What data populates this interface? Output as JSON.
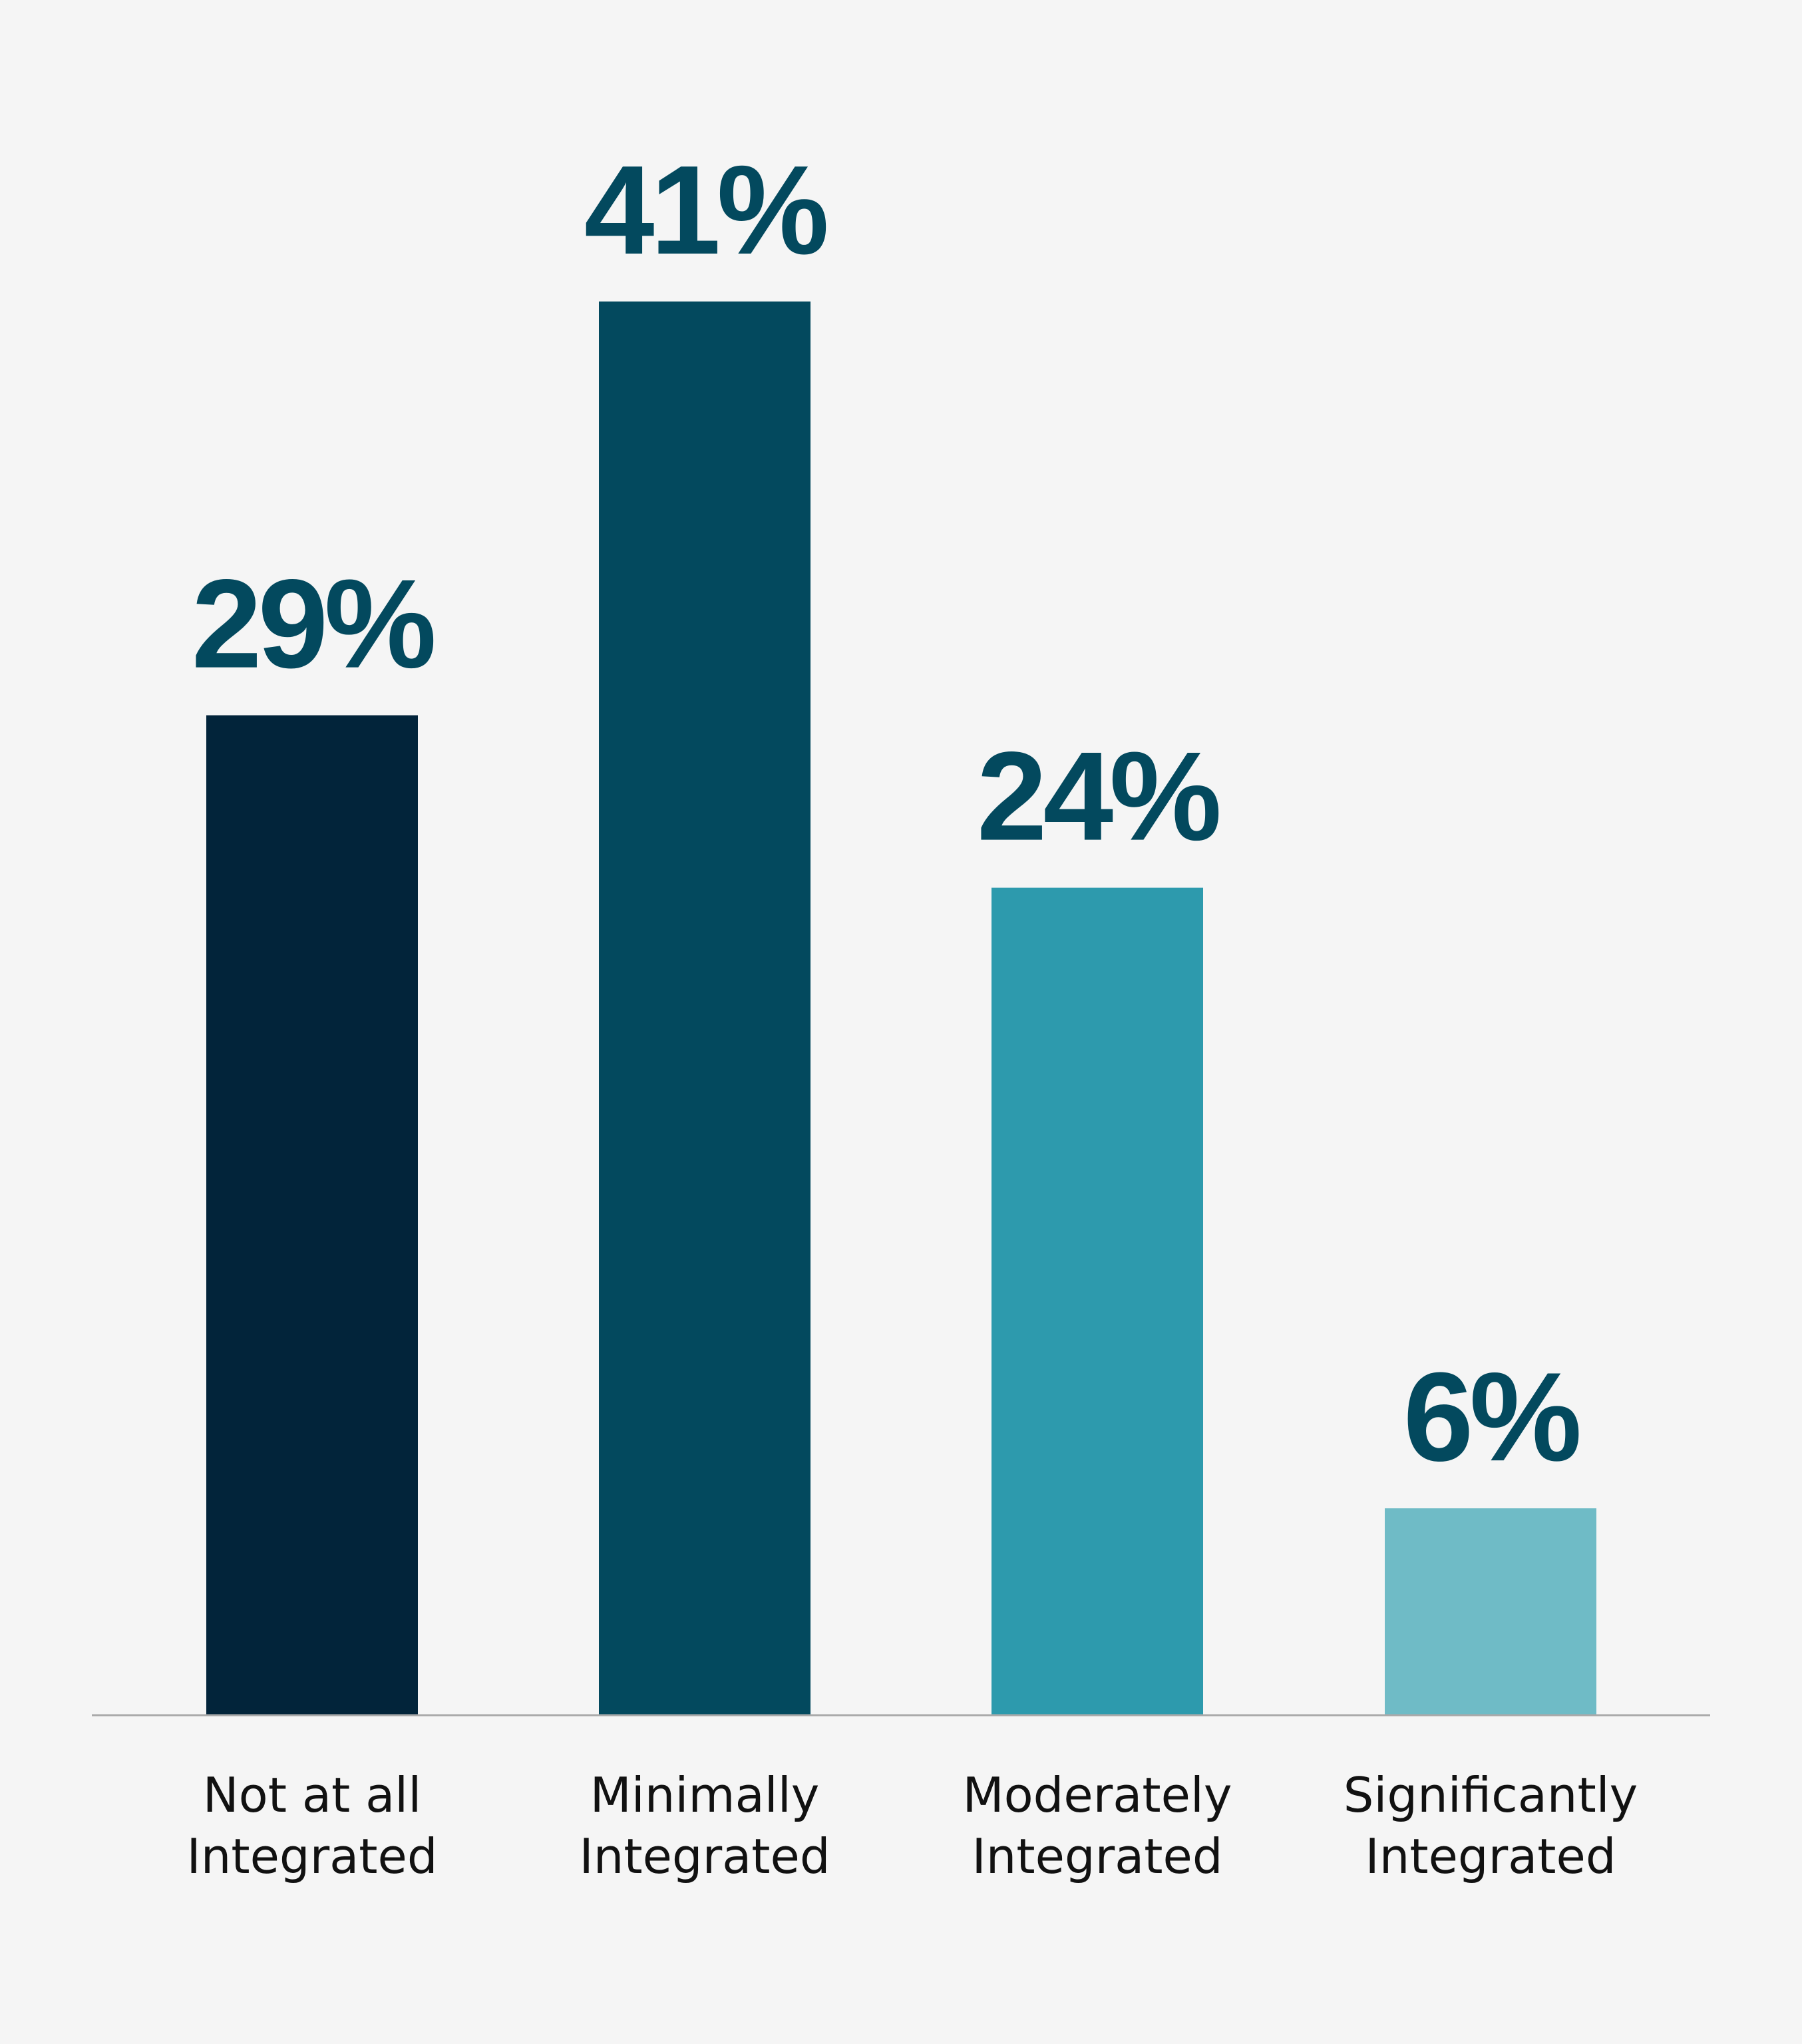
{
  "chart_data": {
    "type": "bar",
    "categories": [
      [
        "Not at all",
        "Integrated"
      ],
      [
        "Minimally",
        "Integrated"
      ],
      [
        "Moderately",
        "Integrated"
      ],
      [
        "Significantly",
        "Integrated"
      ]
    ],
    "values": [
      29,
      41,
      24,
      6
    ],
    "value_labels": [
      "29%",
      "41%",
      "24%",
      "6%"
    ],
    "bar_colors": [
      "#02243a",
      "#03495e",
      "#2d9aad",
      "#6fbbc6"
    ],
    "label_color": "#03495e",
    "axis_color": "#aaaaaa",
    "title": "",
    "xlabel": "",
    "ylabel": "",
    "ylim": [
      0,
      41
    ],
    "grid": false,
    "legend": "none"
  }
}
